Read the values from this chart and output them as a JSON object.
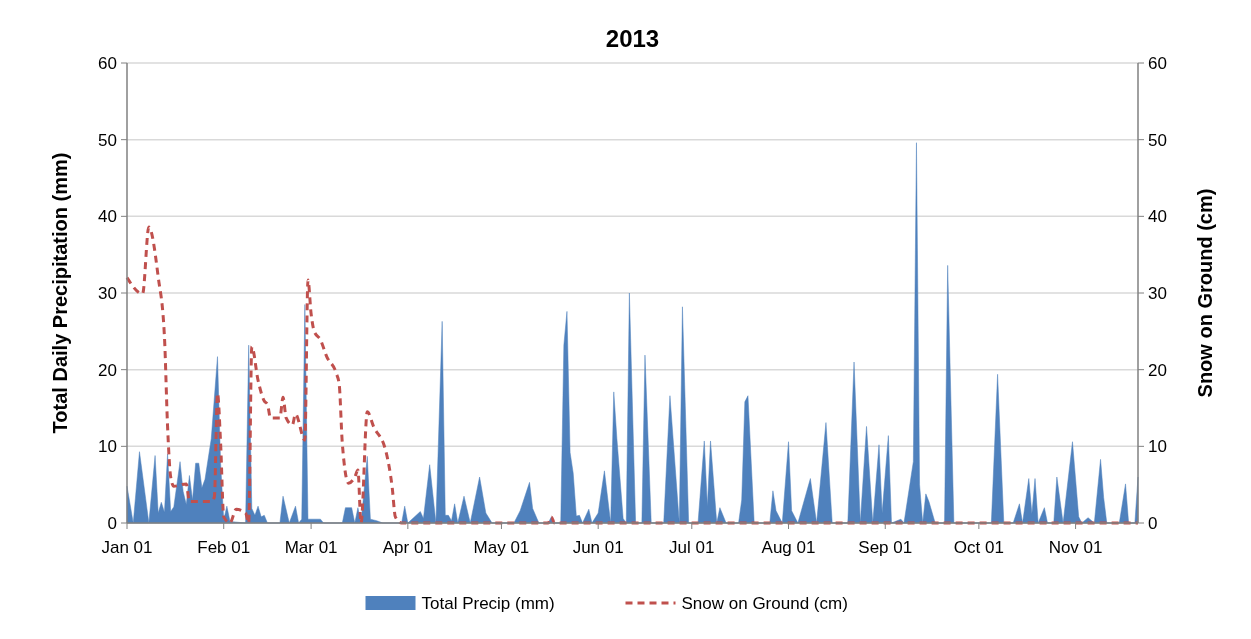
{
  "chart_data": {
    "type": "area",
    "title": "2013",
    "ylabel": "Total Daily Precipitation (mm)",
    "y2label": "Snow on Ground (cm)",
    "xlim": [
      "2013-01-01",
      "2013-11-21"
    ],
    "xticks": [
      {
        "value": "2013-01-01",
        "label": "Jan 01"
      },
      {
        "value": "2013-02-01",
        "label": "Feb 01"
      },
      {
        "value": "2013-03-01",
        "label": "Mar 01"
      },
      {
        "value": "2013-04-01",
        "label": "Apr 01"
      },
      {
        "value": "2013-05-01",
        "label": "May 01"
      },
      {
        "value": "2013-06-01",
        "label": "Jun 01"
      },
      {
        "value": "2013-07-01",
        "label": "Jul 01"
      },
      {
        "value": "2013-08-01",
        "label": "Aug 01"
      },
      {
        "value": "2013-09-01",
        "label": "Sep 01"
      },
      {
        "value": "2013-10-01",
        "label": "Oct 01"
      },
      {
        "value": "2013-11-01",
        "label": "Nov 01"
      }
    ],
    "ylim": [
      0,
      60
    ],
    "yticks": [
      0,
      10,
      20,
      30,
      40,
      50,
      60
    ],
    "y2lim": [
      0,
      60
    ],
    "y2ticks": [
      0,
      10,
      20,
      30,
      40,
      50,
      60
    ],
    "grid": "y",
    "legend": "bottom",
    "series": [
      {
        "name": "Total Precip (mm)",
        "color": "#4f81bd",
        "x": [
          "2013-01-01",
          "2013-01-03",
          "2013-01-05",
          "2013-01-08",
          "2013-01-10",
          "2013-01-11",
          "2013-01-12",
          "2013-01-13",
          "2013-01-14",
          "2013-01-15",
          "2013-01-16",
          "2013-01-18",
          "2013-01-19",
          "2013-01-20",
          "2013-01-21",
          "2013-01-22",
          "2013-01-23",
          "2013-01-24",
          "2013-01-25",
          "2013-01-26",
          "2013-01-28",
          "2013-01-30",
          "2013-01-31",
          "2013-02-01",
          "2013-02-02",
          "2013-02-03",
          "2013-02-08",
          "2013-02-09",
          "2013-02-10",
          "2013-02-11",
          "2013-02-12",
          "2013-02-13",
          "2013-02-14",
          "2013-02-15",
          "2013-02-19",
          "2013-02-20",
          "2013-02-22",
          "2013-02-24",
          "2013-02-25",
          "2013-02-26",
          "2013-02-27",
          "2013-02-28",
          "2013-03-04",
          "2013-03-05",
          "2013-03-11",
          "2013-03-12",
          "2013-03-14",
          "2013-03-15",
          "2013-03-16",
          "2013-03-17",
          "2013-03-19",
          "2013-03-20",
          "2013-03-22",
          "2013-03-24",
          "2013-03-30",
          "2013-03-31",
          "2013-04-01",
          "2013-04-05",
          "2013-04-06",
          "2013-04-08",
          "2013-04-10",
          "2013-04-12",
          "2013-04-13",
          "2013-04-14",
          "2013-04-15",
          "2013-04-16",
          "2013-04-17",
          "2013-04-19",
          "2013-04-21",
          "2013-04-24",
          "2013-04-26",
          "2013-04-28",
          "2013-05-05",
          "2013-05-07",
          "2013-05-10",
          "2013-05-11",
          "2013-05-13",
          "2013-05-16",
          "2013-05-17",
          "2013-05-18",
          "2013-05-20",
          "2013-05-21",
          "2013-05-22",
          "2013-05-23",
          "2013-05-24",
          "2013-05-25",
          "2013-05-26",
          "2013-05-27",
          "2013-05-29",
          "2013-05-30",
          "2013-06-01",
          "2013-06-03",
          "2013-06-05",
          "2013-06-06",
          "2013-06-07",
          "2013-06-09",
          "2013-06-10",
          "2013-06-11",
          "2013-06-13",
          "2013-06-15",
          "2013-06-16",
          "2013-06-18",
          "2013-06-22",
          "2013-06-24",
          "2013-06-27",
          "2013-06-28",
          "2013-06-30",
          "2013-07-03",
          "2013-07-05",
          "2013-07-06",
          "2013-07-07",
          "2013-07-09",
          "2013-07-10",
          "2013-07-12",
          "2013-07-16",
          "2013-07-17",
          "2013-07-18",
          "2013-07-19",
          "2013-07-21",
          "2013-07-26",
          "2013-07-27",
          "2013-07-28",
          "2013-07-30",
          "2013-08-01",
          "2013-08-02",
          "2013-08-04",
          "2013-08-08",
          "2013-08-10",
          "2013-08-13",
          "2013-08-15",
          "2013-08-20",
          "2013-08-22",
          "2013-08-24",
          "2013-08-26",
          "2013-08-28",
          "2013-08-30",
          "2013-08-31",
          "2013-09-02",
          "2013-09-03",
          "2013-09-06",
          "2013-09-07",
          "2013-09-10",
          "2013-09-11",
          "2013-09-12",
          "2013-09-13",
          "2013-09-14",
          "2013-09-15",
          "2013-09-17",
          "2013-09-20",
          "2013-09-21",
          "2013-09-23",
          "2013-10-05",
          "2013-10-07",
          "2013-10-09",
          "2013-10-12",
          "2013-10-14",
          "2013-10-15",
          "2013-10-17",
          "2013-10-18",
          "2013-10-19",
          "2013-10-20",
          "2013-10-22",
          "2013-10-23",
          "2013-10-25",
          "2013-10-26",
          "2013-10-28",
          "2013-10-31",
          "2013-11-02",
          "2013-11-03",
          "2013-11-05",
          "2013-11-07",
          "2013-11-09",
          "2013-11-10",
          "2013-11-11",
          "2013-11-15",
          "2013-11-17",
          "2013-11-18",
          "2013-11-20",
          "2013-11-21"
        ],
        "values": [
          4.8,
          0,
          9.3,
          0,
          8.8,
          1.3,
          2.7,
          1.4,
          9.0,
          1.5,
          2.1,
          8.0,
          4.1,
          2.4,
          6.2,
          3.0,
          7.8,
          7.8,
          4.6,
          5.7,
          11.0,
          21.7,
          7.8,
          0.4,
          2.2,
          0.2,
          0,
          23.2,
          1.9,
          1.0,
          2.2,
          0.8,
          1.0,
          0,
          0,
          3.5,
          0,
          2.2,
          0,
          0.5,
          28.5,
          0.5,
          0.5,
          0,
          0,
          2.0,
          2.0,
          0,
          2.0,
          0,
          8.7,
          0.5,
          0.3,
          0,
          0,
          2.2,
          0,
          1.5,
          0.6,
          7.6,
          0,
          26.3,
          1.0,
          1.0,
          0.3,
          2.5,
          0,
          3.5,
          0,
          6.0,
          1.3,
          0,
          0,
          1.6,
          5.3,
          1.9,
          0,
          0,
          0.8,
          0,
          0,
          23.2,
          27.6,
          9.2,
          6.5,
          0.9,
          1.0,
          0,
          1.8,
          0,
          1.3,
          6.8,
          0,
          17.1,
          11.0,
          0.6,
          0,
          30.0,
          0,
          0,
          21.9,
          0,
          0,
          16.6,
          0,
          28.2,
          0,
          0,
          10.7,
          2.2,
          10.7,
          0,
          2.0,
          0,
          0,
          3.0,
          15.8,
          16.6,
          0,
          0,
          4.2,
          1.6,
          0,
          10.6,
          1.6,
          0,
          5.8,
          0,
          13.1,
          0,
          0,
          21.0,
          0,
          12.6,
          0,
          10.2,
          1.3,
          11.4,
          0,
          0.5,
          0,
          8.0,
          49.6,
          5.0,
          0,
          3.8,
          2.8,
          0,
          0,
          33.6,
          0,
          0,
          19.4,
          0,
          0,
          2.5,
          0,
          5.8,
          1.2,
          5.8,
          0,
          2.0,
          0,
          0,
          6.0,
          0,
          10.6,
          0.8,
          0,
          0.7,
          0,
          8.3,
          3.3,
          0,
          0,
          5.1,
          0,
          0,
          6.0
        ]
      },
      {
        "name": "Snow on Ground (cm)",
        "type": "line",
        "axis": "y2",
        "color": "#c0504d",
        "line_style": "dashed",
        "x": [
          "2013-01-01",
          "2013-01-06",
          "2013-01-08",
          "2013-01-11",
          "2013-01-13",
          "2013-01-14",
          "2013-01-15",
          "2013-01-16",
          "2013-01-20",
          "2013-01-21",
          "2013-01-28",
          "2013-01-29",
          "2013-01-30",
          "2013-01-31",
          "2013-02-01",
          "2013-02-03",
          "2013-02-05",
          "2013-02-08",
          "2013-02-09",
          "2013-02-10",
          "2013-02-12",
          "2013-02-14",
          "2013-02-15",
          "2013-02-16",
          "2013-02-19",
          "2013-02-20",
          "2013-02-21",
          "2013-02-23",
          "2013-02-24",
          "2013-02-27",
          "2013-02-28",
          "2013-03-01",
          "2013-03-02",
          "2013-03-04",
          "2013-03-06",
          "2013-03-09",
          "2013-03-10",
          "2013-03-11",
          "2013-03-13",
          "2013-03-15",
          "2013-03-16",
          "2013-03-17",
          "2013-03-19",
          "2013-03-21",
          "2013-03-25",
          "2013-03-27",
          "2013-03-28",
          "2013-03-30",
          "2013-05-16",
          "2013-05-17",
          "2013-05-18",
          "2013-11-21"
        ],
        "values": [
          32.0,
          29.9,
          38.6,
          32.1,
          24.3,
          12.6,
          6.0,
          4.8,
          5.1,
          2.8,
          2.8,
          3.4,
          16.9,
          10.4,
          0.8,
          0,
          1.8,
          1.3,
          0,
          23.0,
          18.6,
          15.9,
          15.5,
          13.7,
          13.7,
          16.4,
          13.7,
          12.8,
          14.2,
          10.8,
          31.7,
          27.3,
          25.0,
          23.9,
          21.7,
          19.6,
          18.1,
          10.4,
          5.2,
          6.0,
          6.9,
          0,
          14.5,
          12.6,
          9.3,
          4.6,
          0.8,
          0,
          0,
          0.8,
          0,
          0
        ]
      }
    ]
  }
}
